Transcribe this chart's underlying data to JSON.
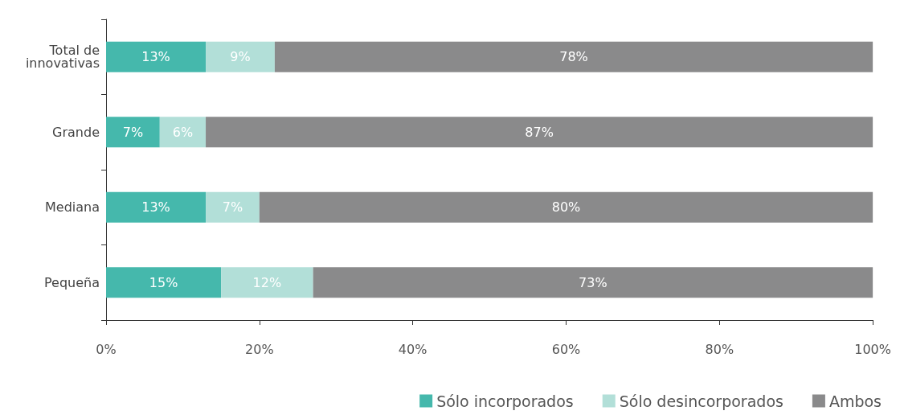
{
  "chart_data": {
    "type": "bar",
    "orientation": "horizontal",
    "stacked": true,
    "categories": [
      "Total de\ninnovativas",
      "Grande",
      "Mediana",
      "Pequeña"
    ],
    "series": [
      {
        "name": "Sólo incorporados",
        "color": "#45b8ac",
        "values": [
          13,
          7,
          13,
          15
        ],
        "value_labels": [
          "13%",
          "7%",
          "13%",
          "15%"
        ]
      },
      {
        "name": "Sólo desincorporados",
        "color": "#b2dfd8",
        "values": [
          9,
          6,
          7,
          12
        ],
        "value_labels": [
          "9%",
          "6%",
          "7%",
          "12%"
        ]
      },
      {
        "name": "Ambos",
        "color": "#8a8a8b",
        "values": [
          78,
          87,
          80,
          73
        ],
        "value_labels": [
          "78%",
          "87%",
          "80%",
          "73%"
        ]
      }
    ],
    "xlim": [
      0,
      100
    ],
    "xticks": [
      {
        "value": 0,
        "label": "0%"
      },
      {
        "value": 20,
        "label": "20%"
      },
      {
        "value": 40,
        "label": "40%"
      },
      {
        "value": 60,
        "label": "60%"
      },
      {
        "value": 80,
        "label": "80%"
      },
      {
        "value": 100,
        "label": "100%"
      }
    ],
    "grid": false,
    "legend": "bottom right"
  }
}
